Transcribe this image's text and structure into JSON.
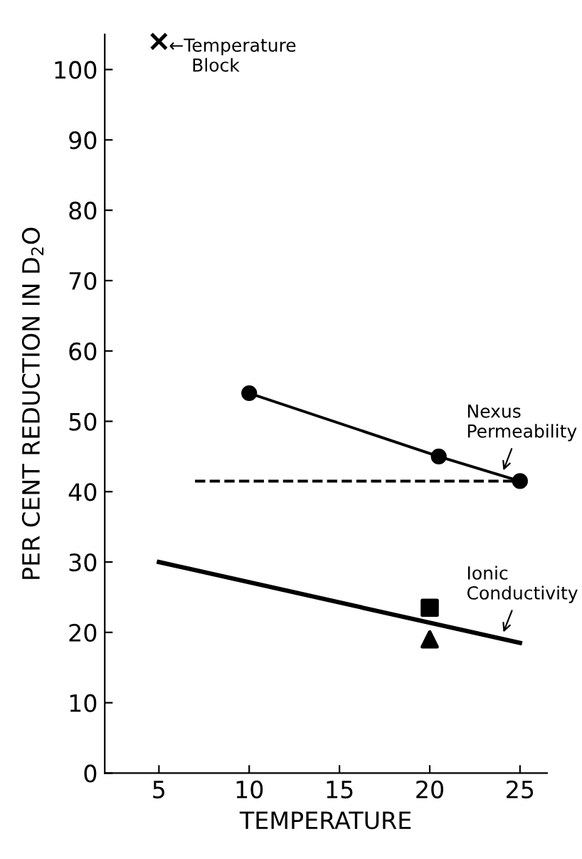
{
  "chart_data": {
    "type": "scatter",
    "xlabel": "TEMPERATURE",
    "ylabel": "PER CENT REDUCTION IN D$_{2}$O",
    "xlim": [
      2,
      26.5
    ],
    "xticks": [
      5,
      10,
      15,
      20,
      25
    ],
    "ylim": [
      0,
      105
    ],
    "yticks": [
      0,
      10,
      20,
      30,
      40,
      50,
      60,
      70,
      80,
      90,
      100
    ],
    "grid": false,
    "series": [
      {
        "type": "line",
        "x": [
          10,
          20.5,
          25
        ],
        "values": [
          54,
          45,
          41.5
        ],
        "color": "#000000",
        "marker": "circle",
        "line_style": "solid"
      },
      {
        "type": "line",
        "x": [
          7,
          25
        ],
        "values": [
          41.5,
          41.5
        ],
        "color": "#000000",
        "marker": "none",
        "line_style": "dashed"
      },
      {
        "type": "line",
        "x": [
          5,
          25
        ],
        "values": [
          30,
          18.5
        ],
        "color": "#000000",
        "marker": "none",
        "line_style": "solid"
      },
      {
        "x": [
          20
        ],
        "values": [
          23.5
        ],
        "color": "#000000",
        "marker": "square"
      },
      {
        "x": [
          20
        ],
        "values": [
          19
        ],
        "color": "#000000",
        "marker": "triangle"
      },
      {
        "x": [
          5
        ],
        "values": [
          104
        ],
        "color": "#000000",
        "marker": "cross"
      }
    ],
    "annotations": [
      "←Temperature\n    Block",
      {
        "text": "Nexus\nPermeability",
        "x": 24,
        "y": 42.5
      },
      {
        "text": "Ionic\nConductivity",
        "x": 24,
        "y": 19.5
      }
    ]
  }
}
